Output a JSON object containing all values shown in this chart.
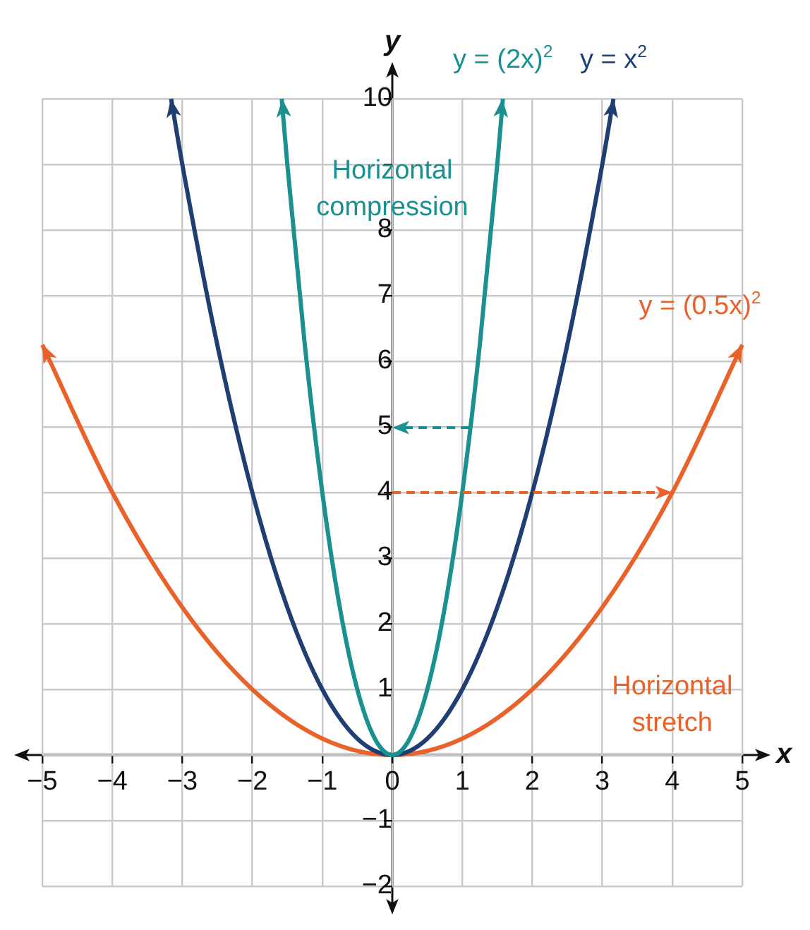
{
  "chart_data": {
    "type": "line",
    "xlabel": "x",
    "ylabel": "y",
    "xlim": [
      -5,
      5
    ],
    "ylim": [
      -2,
      10
    ],
    "xticks": [
      -5,
      -4,
      -3,
      -2,
      -1,
      0,
      1,
      2,
      3,
      4,
      5
    ],
    "yticks": [
      -2,
      -1,
      {
        "value": 0,
        "label": null
      },
      1,
      2,
      3,
      4,
      5,
      6,
      7,
      8,
      {
        "value": 9,
        "label": null
      },
      10
    ],
    "grid": true,
    "legend": false,
    "series": [
      {
        "name": "y = (2x)$^{2}$",
        "color": "#1a9090",
        "x": [
          -1.58,
          -1.5,
          -1.25,
          -1,
          -0.75,
          -0.5,
          -0.25,
          0,
          0.25,
          0.5,
          0.75,
          1,
          1.25,
          1.5,
          1.58
        ],
        "values": [
          10,
          9,
          6.25,
          4,
          2.25,
          1,
          0.25,
          0,
          0.25,
          1,
          2.25,
          4,
          6.25,
          9,
          10
        ]
      },
      {
        "name": "y = x$^{2}$",
        "color": "#1f3f73",
        "x": [
          -3.16,
          -3,
          -2.5,
          -2,
          -1.5,
          -1,
          -0.5,
          0,
          0.5,
          1,
          1.5,
          2,
          2.5,
          3,
          3.16
        ],
        "values": [
          10,
          9,
          6.25,
          4,
          2.25,
          1,
          0.25,
          0,
          0.25,
          1,
          2.25,
          4,
          6.25,
          9,
          10
        ]
      },
      {
        "name": "y = (0.5x)$^{2}$",
        "color": "#e8622a",
        "x": [
          -5,
          -4,
          -3,
          -2,
          -1,
          0,
          1,
          2,
          3,
          4,
          5
        ],
        "values": [
          6.25,
          4,
          2.25,
          1,
          0.25,
          0,
          0.25,
          1,
          2.25,
          4,
          6.25
        ]
      }
    ],
    "annotations": [
      "Horizontal compression",
      "Horizontal stretch"
    ]
  }
}
